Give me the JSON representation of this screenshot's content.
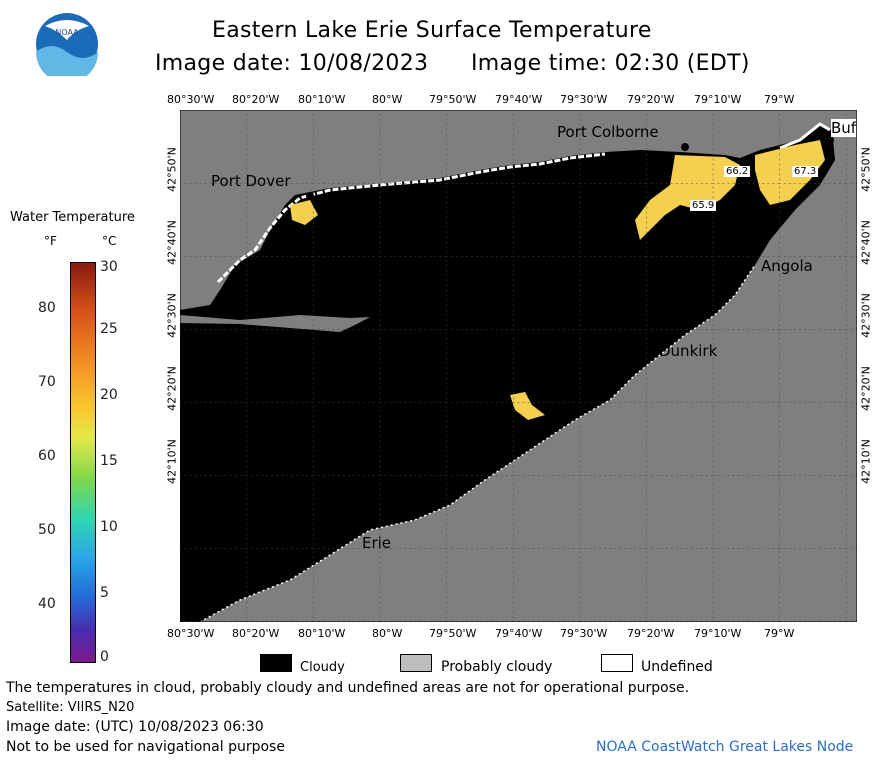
{
  "title": "Eastern Lake Erie Surface Temperature",
  "image_date_line": "Image date: 10/08/2023",
  "image_time_line": "Image time: 02:30 (EDT)",
  "logo_text": "NOAA",
  "colorbar": {
    "title": "Water Temperature",
    "unit_f": "°F",
    "unit_c": "°C",
    "f_ticks": [
      "80",
      "70",
      "60",
      "50",
      "40"
    ],
    "c_ticks": [
      "30",
      "25",
      "20",
      "15",
      "10",
      "5",
      "0"
    ]
  },
  "map": {
    "lon_ticks_top": [
      "80°30'W",
      "80°20'W",
      "80°10'W",
      "80°W",
      "79°50'W",
      "79°40'W",
      "79°30'W",
      "79°20'W",
      "79°10'W",
      "79°W"
    ],
    "lon_ticks_bottom": [
      "80°30'W",
      "80°20'W",
      "80°10'W",
      "80°W",
      "79°50'W",
      "79°40'W",
      "79°30'W",
      "79°20'W",
      "79°10'W",
      "79°W"
    ],
    "lat_ticks_left": [
      "42°50'N",
      "42°40'N",
      "42°30'N",
      "42°20'N",
      "42°10'N"
    ],
    "lat_ticks_right": [
      "42°50'N",
      "42°40'N",
      "42°30'N",
      "42°20'N",
      "42°10'N"
    ],
    "places": {
      "port_colborne": "Port Colborne",
      "port_dover": "Port Dover",
      "buffalo": "Buf",
      "angola": "Angola",
      "dunkirk": "Dunkirk",
      "erie": "Erie"
    },
    "temperature_labels": {
      "t1": "66.2",
      "t2": "67.3",
      "t3": "65.9"
    },
    "colors": {
      "land": "#7f7f7f",
      "cloud": "#000000",
      "undefined": "#ffffff",
      "warm_water": "#f5cf50"
    }
  },
  "legend": {
    "cloudy": "Cloudy",
    "probably_cloudy": "Probably cloudy",
    "undefined": "Undefined"
  },
  "footer": {
    "note": "The temperatures in cloud, probably cloudy and undefined areas are not for operational purpose.",
    "satellite": "Satellite: VIIRS_N20",
    "image_date_utc": "Image date: (UTC) 10/08/2023  06:30",
    "nav_warning": "Not to be used for navigational purpose",
    "credit": "NOAA CoastWatch Great Lakes Node"
  }
}
